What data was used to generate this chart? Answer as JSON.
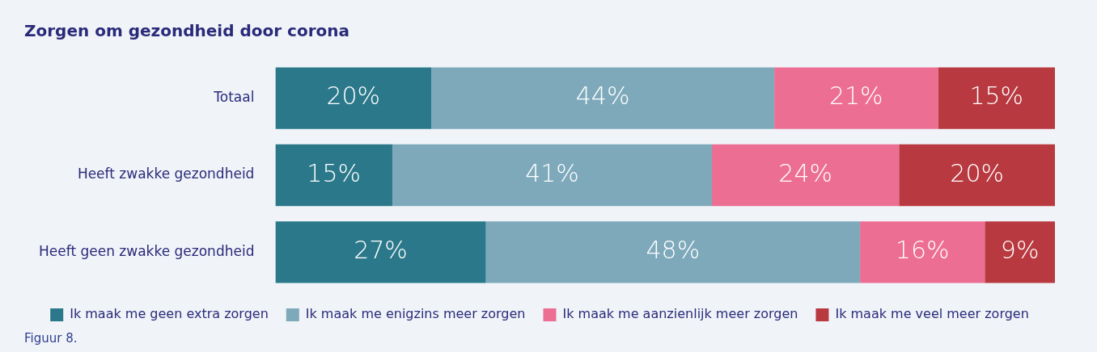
{
  "chart_data": {
    "type": "bar",
    "orientation": "horizontal",
    "stacked": true,
    "title": "Zorgen om gezondheid door corona",
    "categories": [
      "Totaal",
      "Heeft zwakke gezondheid",
      "Heeft geen zwakke gezondheid"
    ],
    "series": [
      {
        "name": "Ik maak me geen extra zorgen",
        "color": "#2a788a",
        "values": [
          20,
          15,
          27
        ],
        "value_labels": [
          "20%",
          "15%",
          "27%"
        ]
      },
      {
        "name": "Ik maak me enigzins meer zorgen",
        "color": "#7ea9bb",
        "values": [
          44,
          41,
          48
        ],
        "value_labels": [
          "44%",
          "41%",
          "48%"
        ]
      },
      {
        "name": "Ik maak me aanzienlijk meer zorgen",
        "color": "#ec6e93",
        "values": [
          21,
          24,
          16
        ],
        "value_labels": [
          "21%",
          "24%",
          "16%"
        ]
      },
      {
        "name": "Ik maak me veel meer zorgen",
        "color": "#b8393f",
        "values": [
          15,
          20,
          9
        ],
        "value_labels": [
          "15%",
          "20%",
          "9%"
        ]
      }
    ],
    "legend": "bottom",
    "tick_labels": "y",
    "annotations": [
      "Figuur 8."
    ]
  }
}
